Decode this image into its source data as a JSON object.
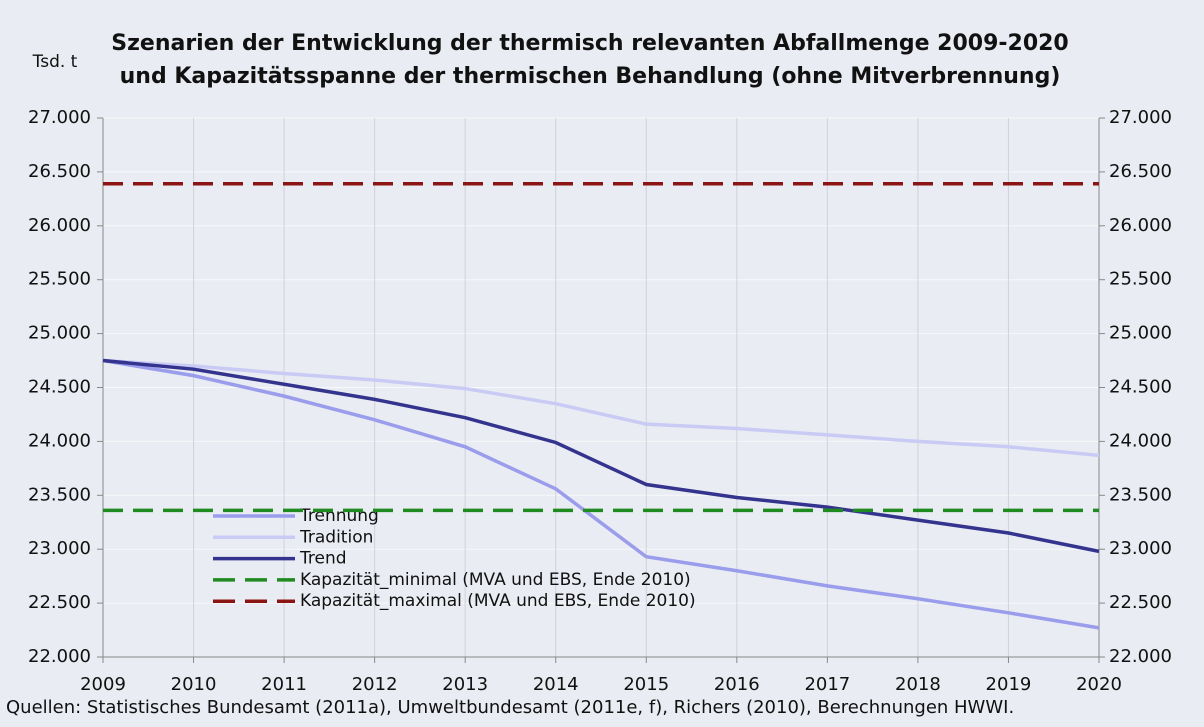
{
  "chart_data": {
    "type": "line",
    "title": [
      "Szenarien der Entwicklung der thermisch relevanten Abfallmenge 2009-2020",
      "und Kapazitätsspanne der thermischen Behandlung (ohne Mitverbrennung)"
    ],
    "y_label": "Tsd. t",
    "source": "Quellen: Statistisches Bundesamt (2011a), Umweltbundesamt (2011e, f), Richers (2010), Berechnungen HWWI.",
    "categories": [
      "2009",
      "2010",
      "2011",
      "2012",
      "2013",
      "2014",
      "2015",
      "2016",
      "2017",
      "2018",
      "2019",
      "2020"
    ],
    "series": [
      {
        "name": "Trennung",
        "color": "#9a9cec",
        "values": [
          24750,
          24610,
          24420,
          24200,
          23950,
          23560,
          22930,
          22800,
          22660,
          22540,
          22410,
          22270
        ]
      },
      {
        "name": "Tradition",
        "color": "#c9cbf5",
        "values": [
          24750,
          24700,
          24630,
          24570,
          24490,
          24350,
          24160,
          24120,
          24060,
          24000,
          23950,
          23870
        ]
      },
      {
        "name": "Trend",
        "color": "#34348f",
        "values": [
          24750,
          24670,
          24530,
          24390,
          24220,
          23990,
          23600,
          23480,
          23390,
          23270,
          23150,
          22980
        ]
      },
      {
        "name": "Kapazität_minimal (MVA und EBS, Ende 2010)",
        "color": "#1f8a1f",
        "dashed": true,
        "value": 23360
      },
      {
        "name": "Kapazität_maximal (MVA und EBS, Ende 2010)",
        "color": "#8b1414",
        "dashed": true,
        "value": 26390
      }
    ],
    "ylim": [
      22000,
      27000
    ],
    "yticks": [
      {
        "value": 22000,
        "label": "22.000"
      },
      {
        "value": 22500,
        "label": "22.500"
      },
      {
        "value": 23000,
        "label": "23.000"
      },
      {
        "value": 23500,
        "label": "23.500"
      },
      {
        "value": 24000,
        "label": "24.000"
      },
      {
        "value": 24500,
        "label": "24.500"
      },
      {
        "value": 25000,
        "label": "25.000"
      },
      {
        "value": 25500,
        "label": "25.500"
      },
      {
        "value": 26000,
        "label": "26.000"
      },
      {
        "value": 26500,
        "label": "26.500"
      },
      {
        "value": 27000,
        "label": "27.000"
      }
    ],
    "grid": true
  }
}
